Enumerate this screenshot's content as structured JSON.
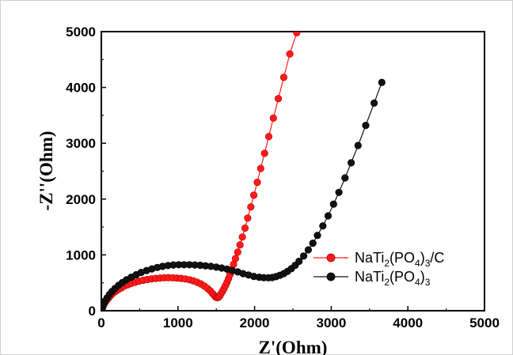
{
  "chart_data": {
    "type": "scatter",
    "title": "",
    "xlabel": "Z'(Ohm)",
    "ylabel": "-Z''(Ohm)",
    "xlim": [
      0,
      5000
    ],
    "ylim": [
      0,
      5000
    ],
    "xticks": [
      "0",
      "1000",
      "2000",
      "3000",
      "4000",
      "5000"
    ],
    "yticks": [
      "0",
      "1000",
      "2000",
      "3000",
      "4000",
      "5000"
    ],
    "grid": false,
    "legend_position": "center-right",
    "series": [
      {
        "name": "NaTi2(PO4)3/C",
        "legend_base": "NaTi",
        "legend_sub1": "2",
        "legend_mid": "(PO",
        "legend_sub2": "4",
        "legend_end": ")",
        "legend_sub3": "3",
        "legend_tail": "/C",
        "color": "#ff1a1a",
        "x": [
          0,
          10,
          20,
          35,
          50,
          70,
          95,
          120,
          150,
          185,
          220,
          260,
          300,
          345,
          390,
          440,
          490,
          545,
          600,
          655,
          710,
          765,
          820,
          875,
          930,
          985,
          1040,
          1095,
          1150,
          1200,
          1250,
          1300,
          1345,
          1385,
          1420,
          1450,
          1475,
          1495,
          1510,
          1520,
          1530,
          1545,
          1560,
          1580,
          1600,
          1620,
          1640,
          1660,
          1680,
          1700,
          1725,
          1750,
          1780,
          1810,
          1840,
          1875,
          1910,
          1950,
          1990,
          2035,
          2080,
          2130,
          2185,
          2245,
          2310,
          2380,
          2460,
          2550
        ],
        "y": [
          0,
          40,
          75,
          115,
          150,
          190,
          230,
          270,
          310,
          345,
          380,
          410,
          440,
          465,
          490,
          510,
          530,
          545,
          560,
          570,
          580,
          585,
          590,
          592,
          590,
          585,
          580,
          570,
          555,
          535,
          510,
          480,
          440,
          400,
          355,
          310,
          270,
          245,
          235,
          235,
          245,
          265,
          300,
          345,
          395,
          450,
          510,
          575,
          650,
          735,
          830,
          935,
          1050,
          1180,
          1320,
          1480,
          1660,
          1860,
          2070,
          2300,
          2550,
          2820,
          3120,
          3450,
          3800,
          4180,
          4600,
          4980
        ]
      },
      {
        "name": "NaTi2(PO4)3",
        "legend_base": "NaTi",
        "legend_sub1": "2",
        "legend_mid": "(PO",
        "legend_sub2": "4",
        "legend_end": ")",
        "legend_sub3": "3",
        "legend_tail": "",
        "color": "#111111",
        "x": [
          0,
          15,
          30,
          50,
          75,
          105,
          140,
          180,
          225,
          275,
          330,
          390,
          455,
          520,
          590,
          660,
          730,
          800,
          870,
          940,
          1010,
          1080,
          1150,
          1220,
          1290,
          1360,
          1430,
          1500,
          1570,
          1640,
          1710,
          1780,
          1850,
          1920,
          1990,
          2060,
          2120,
          2180,
          2230,
          2280,
          2330,
          2380,
          2430,
          2480,
          2530,
          2580,
          2640,
          2700,
          2760,
          2820,
          2890,
          2960,
          3030,
          3100,
          3180,
          3260,
          3350,
          3450,
          3560,
          3660
        ],
        "y": [
          0,
          60,
          120,
          175,
          230,
          290,
          345,
          400,
          455,
          505,
          555,
          600,
          645,
          685,
          720,
          750,
          775,
          795,
          810,
          820,
          825,
          825,
          825,
          820,
          815,
          805,
          795,
          780,
          765,
          745,
          720,
          695,
          665,
          640,
          615,
          600,
          592,
          590,
          595,
          610,
          635,
          665,
          705,
          755,
          815,
          885,
          980,
          1090,
          1210,
          1350,
          1520,
          1700,
          1910,
          2120,
          2380,
          2650,
          2960,
          3320,
          3720,
          4090
        ]
      }
    ]
  }
}
